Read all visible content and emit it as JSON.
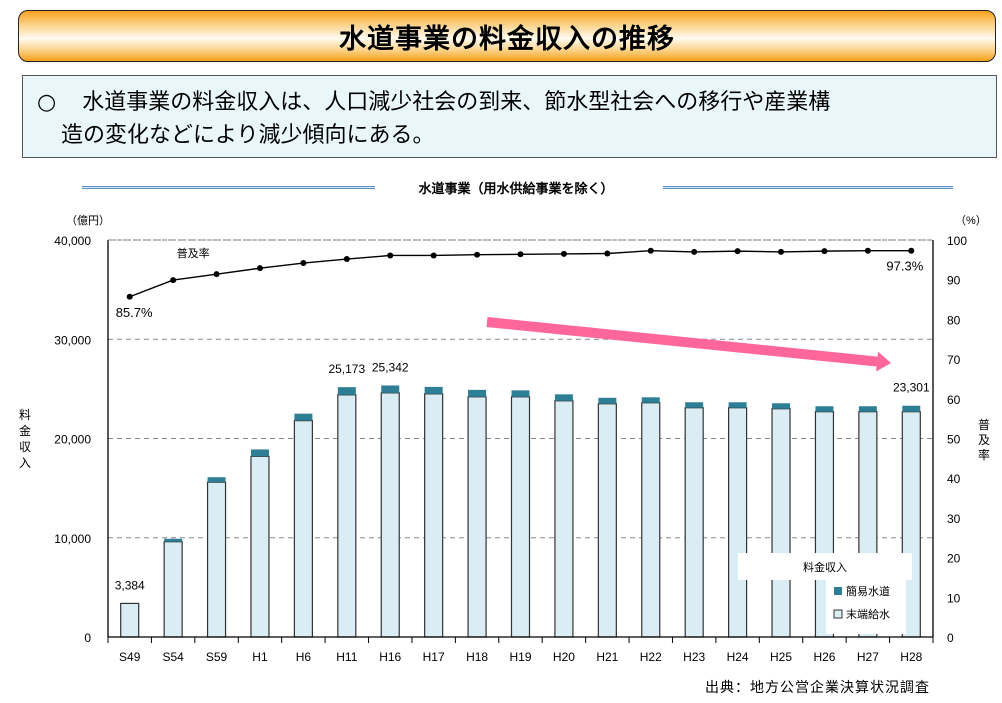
{
  "header": {
    "title": "水道事業の料金収入の推移"
  },
  "description": {
    "bullet": "○",
    "line1": "水道事業の料金収入は、人口減少社会の到来、節水型社会への移行や産業構",
    "line2": "造の変化などにより減少傾向にある。"
  },
  "source": "出典：地方公営企業決算状況調査",
  "colors": {
    "banner_orange": "#f6a21e",
    "desc_bg": "#e9f7fb",
    "kan_i_suido": "#2e7f96",
    "matsutan_kyusui": "#daedf4",
    "trend_arrow": "#ff6699",
    "line": "#000000"
  },
  "chart_data": {
    "type": "bar",
    "title": "水道事業（用水供給事業を除く）",
    "categories": [
      "S49",
      "S54",
      "S59",
      "H1",
      "H6",
      "H11",
      "H16",
      "H17",
      "H18",
      "H19",
      "H20",
      "H21",
      "H22",
      "H23",
      "H24",
      "H25",
      "H26",
      "H27",
      "H28"
    ],
    "left_axis": {
      "unit_label": "（億円）",
      "label": "料金収入",
      "ylim": [
        0,
        40000
      ],
      "ticks": [
        "0",
        "10,000",
        "20,000",
        "30,000",
        "40,000"
      ]
    },
    "right_axis": {
      "unit_label": "（%）",
      "label": "普及率",
      "ylim": [
        0,
        100
      ],
      "ticks": [
        "0",
        "10",
        "20",
        "30",
        "40",
        "50",
        "60",
        "70",
        "80",
        "90",
        "100"
      ]
    },
    "legend": {
      "title": "料金収入",
      "placement": "bottom-right",
      "items": [
        "簡易水道",
        "末端給水"
      ]
    },
    "series": [
      {
        "name": "末端給水",
        "type": "bar-stacked",
        "values": [
          3384,
          9600,
          15600,
          18200,
          21800,
          24400,
          24600,
          24500,
          24200,
          24200,
          23800,
          23500,
          23600,
          23100,
          23100,
          23000,
          22700,
          22700,
          22700
        ]
      },
      {
        "name": "簡易水道",
        "type": "bar-stacked",
        "values": [
          0,
          300,
          500,
          700,
          700,
          773,
          742,
          700,
          700,
          650,
          650,
          600,
          550,
          550,
          550,
          550,
          550,
          550,
          601
        ]
      },
      {
        "name": "普及率",
        "type": "line",
        "axis": "right",
        "values": [
          85.7,
          89.9,
          91.4,
          92.9,
          94.2,
          95.2,
          96.1,
          96.1,
          96.3,
          96.4,
          96.5,
          96.6,
          97.3,
          97.0,
          97.2,
          97.0,
          97.2,
          97.3,
          97.3
        ]
      }
    ],
    "data_labels": [
      {
        "category": "S49",
        "text": "3,384"
      },
      {
        "category": "H11",
        "text": "25,173"
      },
      {
        "category": "H16",
        "text": "25,342"
      },
      {
        "category": "H28",
        "text": "23,301"
      }
    ],
    "line_labels": [
      {
        "category": "S49",
        "text": "85.7%"
      },
      {
        "category": "H28",
        "text": "97.3%"
      }
    ],
    "series_label": "普及率",
    "annotation": "downward trend arrow",
    "grid": true
  }
}
